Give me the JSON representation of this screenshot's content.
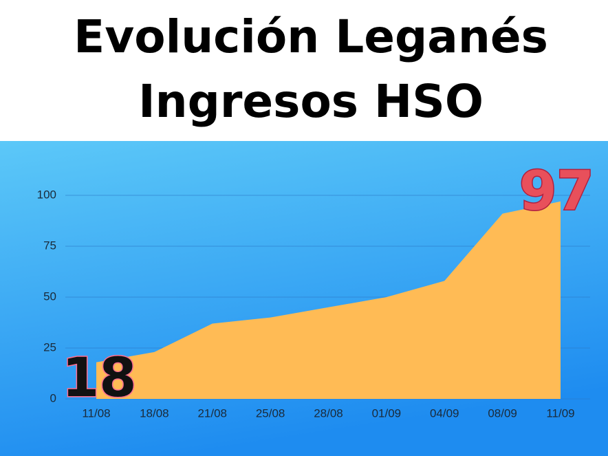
{
  "chart_data": {
    "type": "area",
    "title": [
      "Evolución Leganés",
      "Ingresos HSO"
    ],
    "categories": [
      "11/08",
      "18/08",
      "21/08",
      "25/08",
      "28/08",
      "01/09",
      "04/09",
      "08/09",
      "11/09"
    ],
    "series": [
      {
        "name": "Ingresos HSO",
        "color": "#ffbb55",
        "values": [
          18,
          23,
          37,
          40,
          45,
          50,
          58,
          91,
          97
        ]
      }
    ],
    "ylim": [
      0,
      100
    ],
    "yticks": [
      0,
      25,
      50,
      75,
      100
    ],
    "grid": true,
    "data_labels": [
      {
        "index": 0,
        "color": "#111111",
        "outline": "#ff6f91"
      },
      {
        "index": 8,
        "color": "#e8505b",
        "outline": "#b02040"
      }
    ]
  }
}
